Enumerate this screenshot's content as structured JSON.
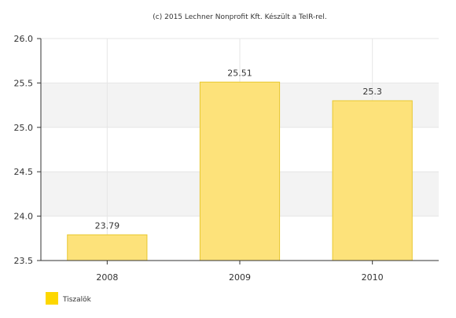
{
  "credit": "(c) 2015 Lechner Nonprofit Kft. Készült a TeIR-rel.",
  "colors": {
    "bar_fill": "#fde27a",
    "bar_stroke": "#e8c830",
    "legend_swatch": "#fdd700",
    "band_shade": "#f3f3f3",
    "axis": "#333333"
  },
  "chart_data": {
    "type": "bar",
    "categories": [
      "2008",
      "2009",
      "2010"
    ],
    "series": [
      {
        "name": "Tiszalök",
        "values": [
          23.79,
          25.51,
          25.3
        ]
      }
    ],
    "data_labels": [
      "23.79",
      "25.51",
      "25.3"
    ],
    "y_ticks": [
      "23.5",
      "24.0",
      "24.5",
      "25.0",
      "25.5",
      "26.0"
    ],
    "ylim": [
      23.5,
      26.0
    ],
    "grid": true,
    "legend_position": "bottom-left"
  }
}
